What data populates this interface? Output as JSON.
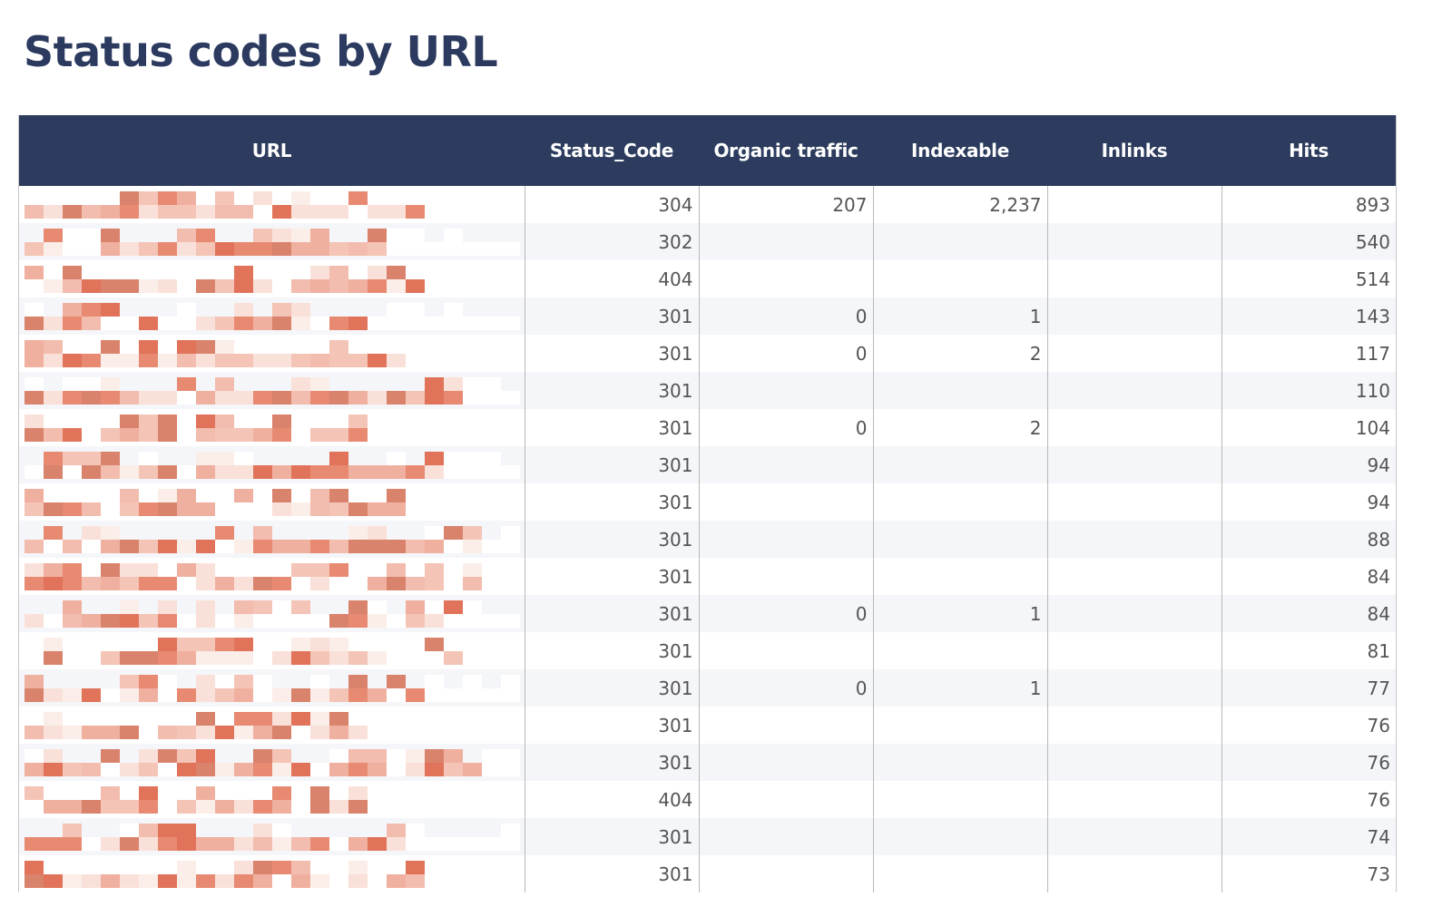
{
  "page": {
    "title": "Status codes by URL"
  },
  "table": {
    "columns": [
      "URL",
      "Status_Code",
      "Organic traffic",
      "Indexable",
      "Inlinks",
      "Hits"
    ],
    "url_note": "URL cells are pixelated/redacted",
    "colors": {
      "header_bg": "#2d3c5e",
      "title": "#2b3a5e",
      "redaction_dark": "#e0735a",
      "redaction_light": "#f4c4b6"
    },
    "rows": [
      {
        "url": "[redacted]",
        "status_code": "304",
        "organic_traffic": "207",
        "indexable": "2,237",
        "inlinks": "",
        "hits": "893"
      },
      {
        "url": "[redacted]",
        "status_code": "302",
        "organic_traffic": "",
        "indexable": "",
        "inlinks": "",
        "hits": "540"
      },
      {
        "url": "[redacted]",
        "status_code": "404",
        "organic_traffic": "",
        "indexable": "",
        "inlinks": "",
        "hits": "514"
      },
      {
        "url": "[redacted]",
        "status_code": "301",
        "organic_traffic": "0",
        "indexable": "1",
        "inlinks": "",
        "hits": "143"
      },
      {
        "url": "[redacted]",
        "status_code": "301",
        "organic_traffic": "0",
        "indexable": "2",
        "inlinks": "",
        "hits": "117"
      },
      {
        "url": "[redacted]",
        "status_code": "301",
        "organic_traffic": "",
        "indexable": "",
        "inlinks": "",
        "hits": "110"
      },
      {
        "url": "[redacted]",
        "status_code": "301",
        "organic_traffic": "0",
        "indexable": "2",
        "inlinks": "",
        "hits": "104"
      },
      {
        "url": "[redacted]",
        "status_code": "301",
        "organic_traffic": "",
        "indexable": "",
        "inlinks": "",
        "hits": "94"
      },
      {
        "url": "[redacted]",
        "status_code": "301",
        "organic_traffic": "",
        "indexable": "",
        "inlinks": "",
        "hits": "94"
      },
      {
        "url": "[redacted]",
        "status_code": "301",
        "organic_traffic": "",
        "indexable": "",
        "inlinks": "",
        "hits": "88"
      },
      {
        "url": "[redacted]",
        "status_code": "301",
        "organic_traffic": "",
        "indexable": "",
        "inlinks": "",
        "hits": "84"
      },
      {
        "url": "[redacted]",
        "status_code": "301",
        "organic_traffic": "0",
        "indexable": "1",
        "inlinks": "",
        "hits": "84"
      },
      {
        "url": "[redacted]",
        "status_code": "301",
        "organic_traffic": "",
        "indexable": "",
        "inlinks": "",
        "hits": "81"
      },
      {
        "url": "[redacted]",
        "status_code": "301",
        "organic_traffic": "0",
        "indexable": "1",
        "inlinks": "",
        "hits": "77"
      },
      {
        "url": "[redacted]",
        "status_code": "301",
        "organic_traffic": "",
        "indexable": "",
        "inlinks": "",
        "hits": "76"
      },
      {
        "url": "[redacted]",
        "status_code": "301",
        "organic_traffic": "",
        "indexable": "",
        "inlinks": "",
        "hits": "76"
      },
      {
        "url": "[redacted]",
        "status_code": "404",
        "organic_traffic": "",
        "indexable": "",
        "inlinks": "",
        "hits": "76"
      },
      {
        "url": "[redacted]",
        "status_code": "301",
        "organic_traffic": "",
        "indexable": "",
        "inlinks": "",
        "hits": "74"
      },
      {
        "url": "[redacted]",
        "status_code": "301",
        "organic_traffic": "",
        "indexable": "",
        "inlinks": "",
        "hits": "73"
      }
    ]
  }
}
